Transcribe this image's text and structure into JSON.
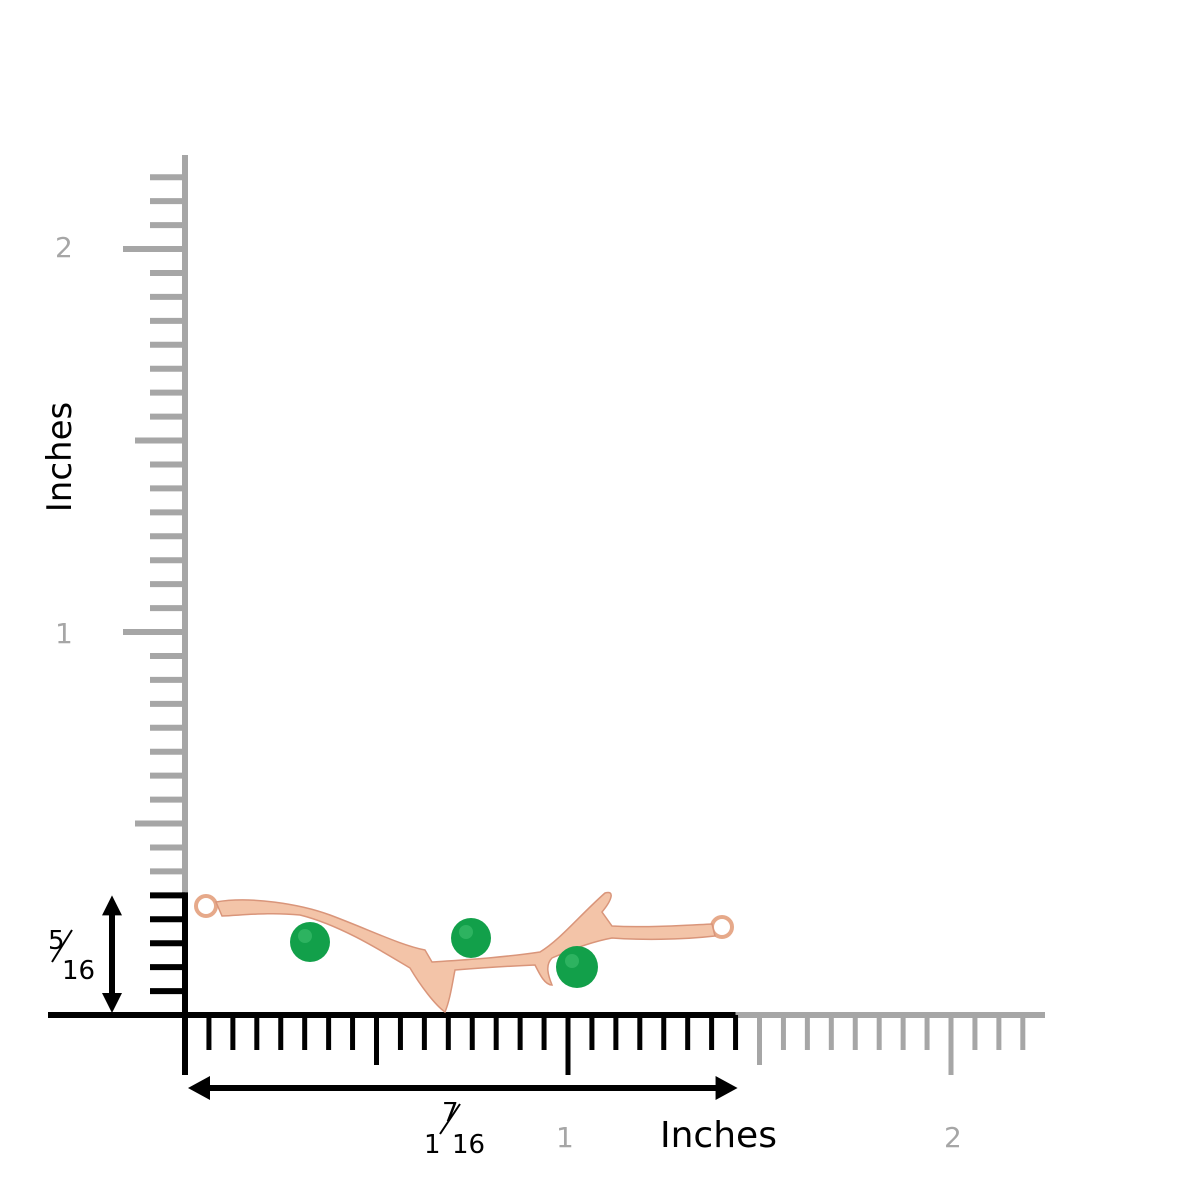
{
  "units_label": "Inches",
  "vertical_axis": {
    "label": "Inches",
    "tick_labels": [
      "1",
      "2"
    ]
  },
  "horizontal_axis": {
    "label": "Inches",
    "tick_labels": [
      "1",
      "2"
    ]
  },
  "height_dimension": {
    "numerator": "5",
    "denominator": "16",
    "value_in": 0.3125
  },
  "width_dimension": {
    "whole": "1",
    "numerator": "7",
    "denominator": "16",
    "value_in": 1.4375
  },
  "colors": {
    "ruler_grey": "#a6a6a6",
    "ruler_black": "#000000",
    "metal": "#f3c4a8",
    "metal_shade": "#d9957a",
    "gem": "#12a04a"
  }
}
